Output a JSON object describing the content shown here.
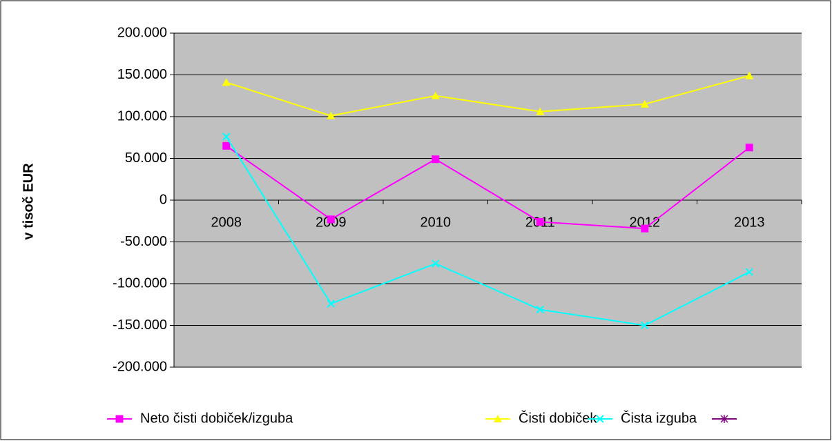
{
  "chart_data": {
    "type": "line",
    "y_axis_label": "v tisoč EUR",
    "categories": [
      "2008",
      "2009",
      "2010",
      "2011",
      "2012",
      "2013"
    ],
    "series": [
      {
        "name": "Neto čisti dobiček/izguba",
        "color": "#ff00ff",
        "marker": "square",
        "values": [
          65000,
          -23000,
          49000,
          -26000,
          -34000,
          63000
        ]
      },
      {
        "name": "Čisti dobiček",
        "color": "#ffff00",
        "marker": "triangle",
        "values": [
          141000,
          101000,
          125000,
          106000,
          115000,
          149000
        ]
      },
      {
        "name": "Čista izguba",
        "color": "#00ffff",
        "marker": "x",
        "values": [
          76000,
          -124000,
          -76000,
          -131000,
          -150000,
          -86000
        ]
      },
      {
        "color": "#800080",
        "marker": "star",
        "values": [
          null,
          null,
          null,
          null,
          null,
          null
        ]
      }
    ],
    "ylim": [
      -200000,
      200000
    ],
    "yticks": [
      {
        "value": -200000,
        "label": "-200.000"
      },
      {
        "value": -150000,
        "label": "-150.000"
      },
      {
        "value": -100000,
        "label": "-100.000"
      },
      {
        "value": -50000,
        "label": "-50.000"
      },
      0,
      {
        "value": 50000,
        "label": "50.000"
      },
      {
        "value": 100000,
        "label": "100.000"
      },
      {
        "value": 150000,
        "label": "150.000"
      },
      {
        "value": 200000,
        "label": "200.000"
      }
    ],
    "grid": true,
    "legend": "bottom",
    "plot_background": "#c0c0c0"
  }
}
